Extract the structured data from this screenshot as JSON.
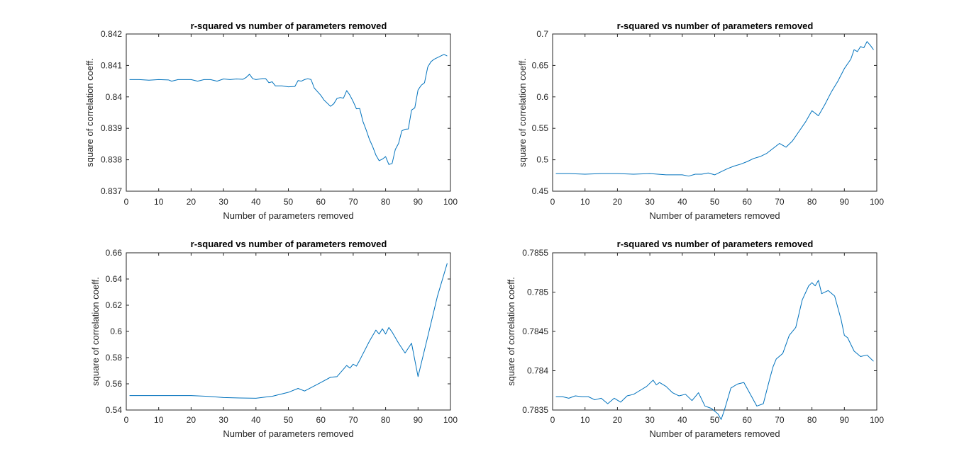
{
  "figure": {
    "line_color": "#0072BD",
    "axis_color": "#262626"
  },
  "chart_data": [
    {
      "type": "line",
      "title": "r-squared vs number of parameters removed",
      "xlabel": "Number of parameters removed",
      "ylabel": "square of correlation coeff.",
      "xlim": [
        0,
        100
      ],
      "ylim": [
        0.837,
        0.842
      ],
      "xticks": [
        "0",
        "10",
        "20",
        "30",
        "40",
        "50",
        "60",
        "70",
        "80",
        "90",
        "100"
      ],
      "yticks": [
        "0.837",
        "0.838",
        "0.839",
        "0.84",
        "0.841",
        "0.842"
      ],
      "x": [
        1,
        4,
        7,
        10,
        13,
        14,
        16,
        20,
        22,
        24,
        26,
        28,
        30,
        32,
        34,
        36,
        37,
        38,
        39,
        40,
        42,
        43,
        44,
        45,
        46,
        48,
        50,
        52,
        53,
        54,
        55,
        56,
        57,
        58,
        60,
        61,
        62,
        63,
        64,
        65,
        66,
        67,
        68,
        69,
        70,
        71,
        72,
        73,
        74,
        75,
        76,
        77,
        78,
        79,
        80,
        81,
        82,
        83,
        84,
        85,
        86,
        87,
        88,
        89,
        90,
        91,
        92,
        93,
        94,
        95,
        96,
        97,
        98,
        99
      ],
      "y": [
        0.84055,
        0.84055,
        0.84053,
        0.84055,
        0.84054,
        0.8405,
        0.84055,
        0.84055,
        0.8405,
        0.84055,
        0.84055,
        0.8405,
        0.84057,
        0.84055,
        0.84057,
        0.84056,
        0.84062,
        0.84072,
        0.84058,
        0.84055,
        0.84058,
        0.84058,
        0.84045,
        0.84048,
        0.84035,
        0.84035,
        0.84032,
        0.84033,
        0.84052,
        0.8405,
        0.84055,
        0.84058,
        0.84055,
        0.84028,
        0.84005,
        0.8399,
        0.8398,
        0.8397,
        0.83978,
        0.83995,
        0.83998,
        0.83996,
        0.8402,
        0.84005,
        0.83985,
        0.83962,
        0.83963,
        0.83922,
        0.83895,
        0.83865,
        0.83842,
        0.83815,
        0.83797,
        0.83802,
        0.8381,
        0.83785,
        0.83788,
        0.83833,
        0.83852,
        0.83892,
        0.83897,
        0.83898,
        0.83958,
        0.83965,
        0.84022,
        0.84037,
        0.84045,
        0.84095,
        0.84112,
        0.8412,
        0.84125,
        0.8413,
        0.84135,
        0.8413
      ]
    },
    {
      "type": "line",
      "title": "r-squared vs number of parameters removed",
      "xlabel": "Number of parameters removed",
      "ylabel": "square of correlation coeff.",
      "xlim": [
        0,
        100
      ],
      "ylim": [
        0.45,
        0.7
      ],
      "xticks": [
        "0",
        "10",
        "20",
        "30",
        "40",
        "50",
        "60",
        "70",
        "80",
        "90",
        "100"
      ],
      "yticks": [
        "0.45",
        "0.5",
        "0.55",
        "0.6",
        "0.65",
        "0.7"
      ],
      "x": [
        1,
        5,
        10,
        15,
        20,
        25,
        30,
        35,
        40,
        42,
        44,
        46,
        48,
        50,
        52,
        54,
        56,
        58,
        60,
        62,
        64,
        66,
        68,
        70,
        72,
        74,
        76,
        78,
        80,
        82,
        84,
        86,
        88,
        90,
        92,
        93,
        94,
        95,
        96,
        97,
        98,
        99
      ],
      "y": [
        0.478,
        0.478,
        0.477,
        0.478,
        0.478,
        0.477,
        0.478,
        0.476,
        0.476,
        0.474,
        0.477,
        0.477,
        0.479,
        0.476,
        0.481,
        0.486,
        0.49,
        0.493,
        0.497,
        0.502,
        0.505,
        0.51,
        0.518,
        0.526,
        0.52,
        0.53,
        0.545,
        0.56,
        0.578,
        0.57,
        0.588,
        0.608,
        0.625,
        0.645,
        0.66,
        0.675,
        0.672,
        0.68,
        0.678,
        0.688,
        0.682,
        0.675
      ]
    },
    {
      "type": "line",
      "title": "r-squared vs number of parameters removed",
      "xlabel": "Number of parameters removed",
      "ylabel": "square of correlation coeff.",
      "xlim": [
        0,
        100
      ],
      "ylim": [
        0.54,
        0.66
      ],
      "xticks": [
        "0",
        "10",
        "20",
        "30",
        "40",
        "50",
        "60",
        "70",
        "80",
        "90",
        "100"
      ],
      "yticks": [
        "0.54",
        "0.56",
        "0.58",
        "0.6",
        "0.62",
        "0.64",
        "0.66"
      ],
      "x": [
        1,
        5,
        10,
        15,
        20,
        25,
        30,
        35,
        40,
        45,
        50,
        53,
        55,
        60,
        63,
        65,
        68,
        69,
        70,
        71,
        72,
        75,
        77,
        78,
        79,
        80,
        81,
        82,
        84,
        86,
        88,
        90,
        93,
        96,
        99
      ],
      "y": [
        0.551,
        0.551,
        0.551,
        0.551,
        0.551,
        0.5505,
        0.5495,
        0.5492,
        0.549,
        0.5505,
        0.5535,
        0.5565,
        0.5545,
        0.561,
        0.565,
        0.5655,
        0.574,
        0.572,
        0.575,
        0.5735,
        0.578,
        0.5925,
        0.601,
        0.598,
        0.602,
        0.598,
        0.603,
        0.5995,
        0.591,
        0.5835,
        0.591,
        0.5655,
        0.596,
        0.627,
        0.652
      ]
    },
    {
      "type": "line",
      "title": "r-squared vs number of parameters removed",
      "xlabel": "Number of parameters removed",
      "ylabel": "square of correlation coeff.",
      "xlim": [
        0,
        100
      ],
      "ylim": [
        0.7835,
        0.7855
      ],
      "xticks": [
        "0",
        "10",
        "20",
        "30",
        "40",
        "50",
        "60",
        "70",
        "80",
        "90",
        "100"
      ],
      "yticks": [
        "0.7835",
        "0.784",
        "0.7845",
        "0.785",
        "0.7855"
      ],
      "x": [
        1,
        3,
        5,
        7,
        9,
        11,
        13,
        15,
        17,
        19,
        21,
        23,
        25,
        27,
        29,
        31,
        32,
        33,
        35,
        37,
        39,
        41,
        43,
        45,
        47,
        49,
        51,
        52,
        53,
        55,
        57,
        59,
        61,
        63,
        65,
        67,
        68,
        69,
        71,
        73,
        75,
        77,
        79,
        80,
        81,
        82,
        83,
        85,
        87,
        89,
        90,
        91,
        93,
        95,
        97,
        99
      ],
      "y": [
        0.78367,
        0.78367,
        0.78365,
        0.78368,
        0.78367,
        0.78367,
        0.78363,
        0.78365,
        0.78358,
        0.78365,
        0.7836,
        0.78368,
        0.7837,
        0.78375,
        0.7838,
        0.78388,
        0.78382,
        0.78385,
        0.7838,
        0.78372,
        0.78368,
        0.7837,
        0.78362,
        0.78372,
        0.78355,
        0.78352,
        0.78345,
        0.78338,
        0.7835,
        0.78378,
        0.78383,
        0.78385,
        0.7837,
        0.78355,
        0.78358,
        0.7839,
        0.78405,
        0.78415,
        0.78422,
        0.78445,
        0.78455,
        0.7849,
        0.78508,
        0.78512,
        0.78508,
        0.78515,
        0.78498,
        0.78502,
        0.78495,
        0.78465,
        0.78445,
        0.78442,
        0.78425,
        0.78418,
        0.7842,
        0.78412
      ]
    }
  ]
}
